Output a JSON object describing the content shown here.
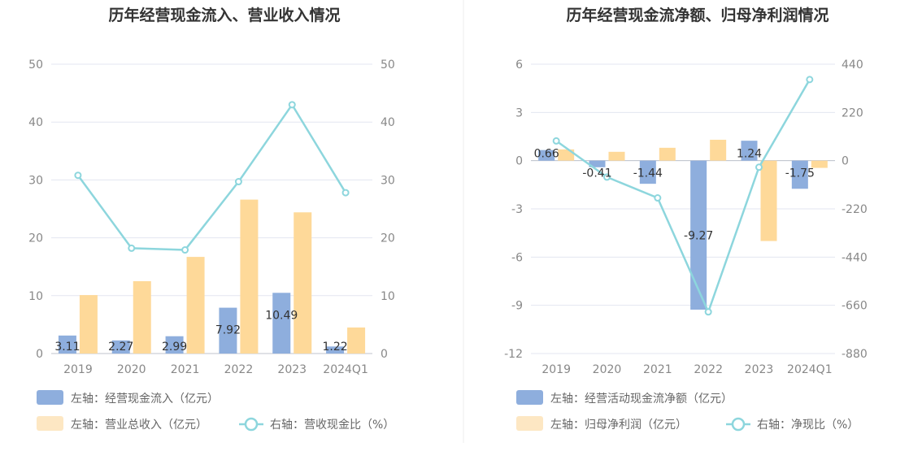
{
  "chart_data": [
    {
      "type": "bar",
      "title": "历年经营现金流入、营业收入情况",
      "categories": [
        "2019",
        "2020",
        "2021",
        "2022",
        "2023",
        "2024Q1"
      ],
      "left_axis": {
        "range": [
          0,
          50
        ],
        "ticks": [
          "0",
          "10",
          "20",
          "30",
          "40",
          "50"
        ]
      },
      "right_axis": {
        "range": [
          0,
          50
        ],
        "ticks": [
          "0",
          "10",
          "20",
          "30",
          "40",
          "50"
        ]
      },
      "series": [
        {
          "name": "左轴：经营现金流入（亿元）",
          "kind": "bar",
          "axis": "left",
          "color": "#8eaedd",
          "values": [
            3.11,
            2.27,
            2.99,
            7.92,
            10.49,
            1.22
          ],
          "labels": [
            "3.11",
            "2.27",
            "2.99",
            "7.92",
            "10.49",
            "1.22"
          ]
        },
        {
          "name": "左轴：营业总收入（亿元）",
          "kind": "bar",
          "axis": "left",
          "color": "#fed999",
          "values": [
            10.1,
            12.5,
            16.7,
            26.6,
            24.4,
            4.5
          ]
        },
        {
          "name": "右轴：营收现金比（%）",
          "kind": "line",
          "axis": "right",
          "color": "#8dd6dd",
          "values": [
            30.8,
            18.2,
            17.9,
            29.7,
            43.0,
            27.8
          ]
        }
      ]
    },
    {
      "type": "bar",
      "title": "历年经营现金流净额、归母净利润情况",
      "categories": [
        "2019",
        "2020",
        "2021",
        "2022",
        "2023",
        "2024Q1"
      ],
      "left_axis": {
        "range": [
          -12,
          6
        ],
        "ticks": [
          "-12",
          "-9",
          "-6",
          "-3",
          "0",
          "3",
          "6"
        ]
      },
      "right_axis": {
        "range": [
          -880,
          440
        ],
        "ticks": [
          "-880",
          "-660",
          "-440",
          "-220",
          "0",
          "220",
          "440"
        ]
      },
      "series": [
        {
          "name": "左轴：经营活动现金流净额（亿元）",
          "kind": "bar",
          "axis": "left",
          "color": "#8eaedd",
          "values": [
            0.66,
            -0.41,
            -1.44,
            -9.27,
            1.24,
            -1.75
          ],
          "labels": [
            "0.66",
            "-0.41",
            "-1.44",
            "-9.27",
            "1.24",
            "-1.75"
          ]
        },
        {
          "name": "左轴：归母净利润（亿元）",
          "kind": "bar",
          "axis": "left",
          "color": "#fed999",
          "values": [
            0.7,
            0.55,
            0.8,
            1.3,
            -5.0,
            -0.45
          ]
        },
        {
          "name": "右轴：净现比（%）",
          "kind": "line",
          "axis": "right",
          "color": "#8dd6dd",
          "values": [
            90,
            -75,
            -170,
            -690,
            -30,
            370
          ]
        }
      ]
    }
  ]
}
